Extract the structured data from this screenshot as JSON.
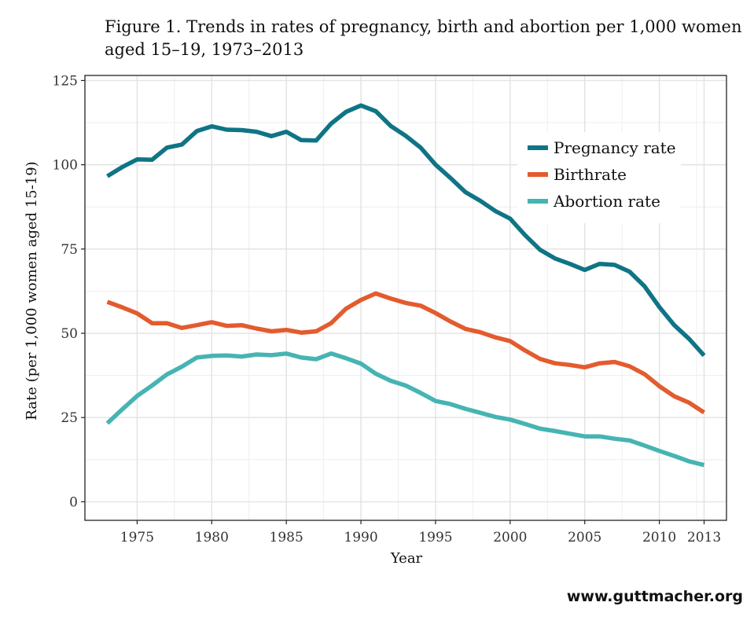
{
  "title_lines": [
    "Figure 1. Trends in rates of pregnancy, birth and abortion per 1,000 women",
    "aged 15–19, 1973–2013"
  ],
  "source": "www.guttmacher.org",
  "chart_data": {
    "type": "line",
    "title": "Figure 1. Trends in rates of pregnancy, birth and abortion per 1,000 women aged 15–19, 1973–2013",
    "xlabel": "Year",
    "ylabel": "Rate (per 1,000 women aged 15-19)",
    "xlim": [
      1971.5,
      2014.5
    ],
    "ylim": [
      -5.5,
      126.5
    ],
    "x_ticks": [
      1975,
      1980,
      1985,
      1990,
      1995,
      2000,
      2005,
      2010,
      2013
    ],
    "y_ticks": [
      0,
      25,
      50,
      75,
      100,
      125
    ],
    "grid": true,
    "legend_position": "top-right",
    "x": [
      1973,
      1974,
      1975,
      1976,
      1977,
      1978,
      1979,
      1980,
      1981,
      1982,
      1983,
      1984,
      1985,
      1986,
      1987,
      1988,
      1989,
      1990,
      1991,
      1992,
      1993,
      1994,
      1995,
      1996,
      1997,
      1998,
      1999,
      2000,
      2001,
      2002,
      2003,
      2004,
      2005,
      2006,
      2007,
      2008,
      2009,
      2010,
      2011,
      2012,
      2013
    ],
    "series": [
      {
        "name": "Pregnancy rate",
        "color": "#0f7585",
        "values": [
          96.6,
          99.3,
          101.6,
          101.5,
          105.1,
          106.0,
          110.0,
          111.4,
          110.4,
          110.3,
          109.8,
          108.5,
          109.8,
          107.3,
          107.2,
          112.2,
          115.7,
          117.6,
          115.9,
          111.5,
          108.6,
          105.1,
          100.0,
          96.1,
          91.9,
          89.3,
          86.3,
          84.0,
          79.1,
          74.8,
          72.2,
          70.6,
          68.8,
          70.6,
          70.3,
          68.3,
          64.0,
          57.8,
          52.4,
          48.3,
          43.4
        ]
      },
      {
        "name": "Birthrate",
        "color": "#e35b2e",
        "values": [
          59.3,
          57.7,
          55.9,
          53.0,
          53.0,
          51.6,
          52.4,
          53.3,
          52.2,
          52.4,
          51.4,
          50.6,
          51.0,
          50.2,
          50.6,
          53.0,
          57.3,
          59.9,
          61.8,
          60.3,
          59.0,
          58.2,
          56.0,
          53.5,
          51.3,
          50.3,
          48.8,
          47.7,
          44.9,
          42.4,
          41.1,
          40.6,
          39.9,
          41.1,
          41.5,
          40.2,
          37.9,
          34.3,
          31.3,
          29.4,
          26.5
        ]
      },
      {
        "name": "Abortion rate",
        "color": "#46b4b3",
        "values": [
          23.3,
          27.4,
          31.4,
          34.5,
          37.8,
          40.1,
          42.8,
          43.3,
          43.4,
          43.1,
          43.7,
          43.5,
          44.0,
          42.8,
          42.3,
          44.0,
          42.6,
          41.0,
          38.0,
          35.9,
          34.5,
          32.3,
          29.9,
          29.0,
          27.6,
          26.4,
          25.2,
          24.4,
          23.1,
          21.7,
          21.0,
          20.2,
          19.4,
          19.4,
          18.7,
          18.2,
          16.7,
          15.1,
          13.6,
          12.0,
          10.9
        ]
      }
    ]
  }
}
